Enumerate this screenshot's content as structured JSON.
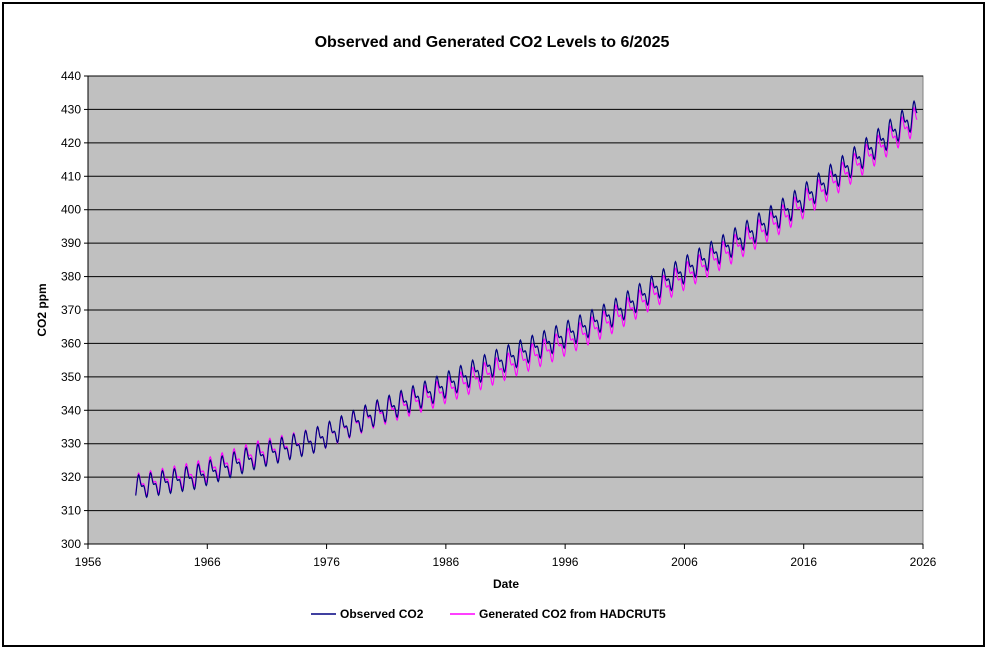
{
  "chart_data": {
    "type": "line",
    "title": "Observed and Generated CO2 Levels to 6/2025",
    "xlabel": "Date",
    "ylabel": "CO2 ppm",
    "xlim": [
      1956,
      2026
    ],
    "ylim": [
      300,
      440
    ],
    "xticks": [
      "1956",
      "1966",
      "1976",
      "1986",
      "1996",
      "2006",
      "2016",
      "2026"
    ],
    "yticks": [
      "300",
      "310",
      "320",
      "330",
      "340",
      "350",
      "360",
      "370",
      "380",
      "390",
      "400",
      "410",
      "420",
      "430",
      "440"
    ],
    "grid": "horizontal",
    "legend": "bottom",
    "plot_background": "#c0c0c0",
    "series": [
      {
        "name": "Observed CO2",
        "color": "#000080",
        "x": [
          1960.0,
          1965.0,
          1970.0,
          1975.0,
          1980.0,
          1985.0,
          1990.0,
          1995.0,
          2000.0,
          2005.0,
          2010.0,
          2015.0,
          2020.0,
          2025.5
        ],
        "values": [
          317.0,
          320.0,
          326.0,
          331.0,
          339.0,
          346.0,
          354.0,
          361.0,
          369.0,
          380.0,
          390.0,
          401.0,
          414.0,
          429.0
        ],
        "seasonal_amplitude": 3.0
      },
      {
        "name": "Generated CO2 from HADCRUT5",
        "color": "#ff00ff",
        "x": [
          1960.0,
          1965.0,
          1970.0,
          1975.0,
          1980.0,
          1985.0,
          1990.0,
          1995.0,
          2000.0,
          2005.0,
          2010.0,
          2015.0,
          2020.0,
          2025.5
        ],
        "values": [
          317.5,
          321.0,
          327.0,
          331.0,
          338.5,
          344.5,
          351.5,
          358.5,
          367.0,
          378.0,
          388.0,
          399.0,
          412.0,
          427.0
        ],
        "seasonal_amplitude": 3.0
      }
    ]
  }
}
